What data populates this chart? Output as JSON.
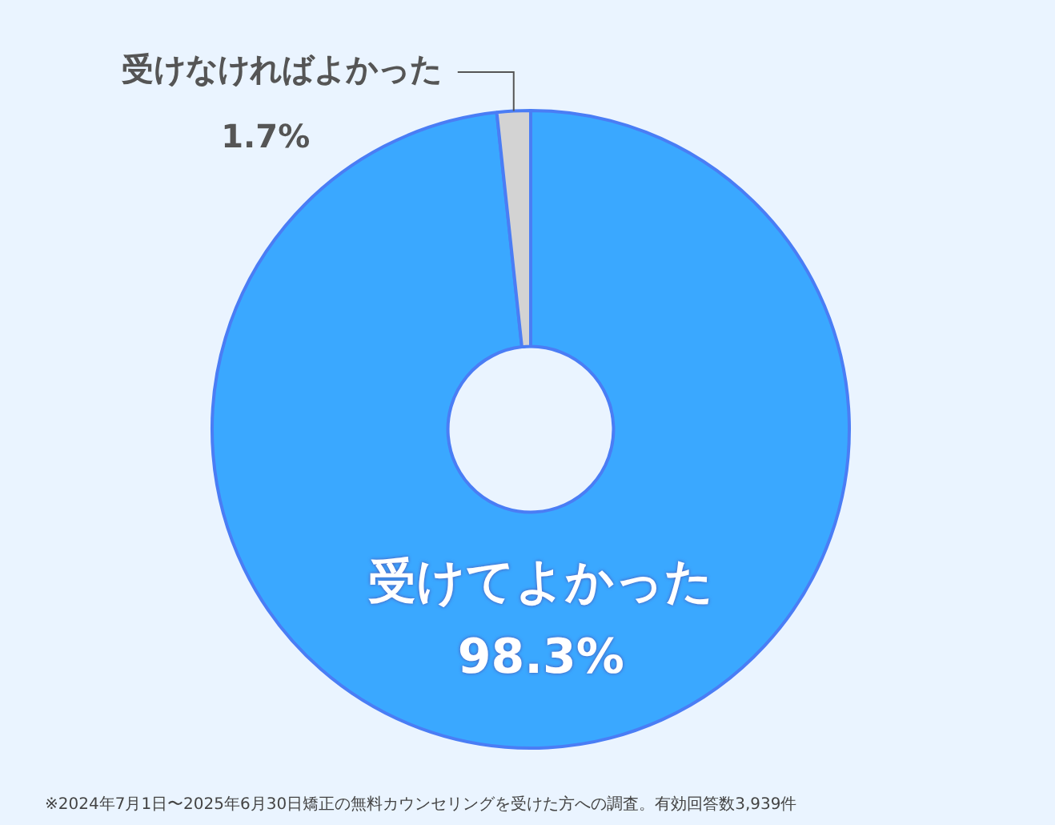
{
  "chart_data": {
    "type": "donut",
    "categories": [
      "受けてよかった",
      "受けなければよかった"
    ],
    "values": [
      98.3,
      1.7
    ],
    "colors": [
      "#3aa8ff",
      "#d3d3d3"
    ],
    "value_labels": [
      "98.3%",
      "1.7%"
    ],
    "annotations": [
      "※2024年7月1日〜2025年6月30日矯正の無料カウンセリングを受けた方への調査。有効回答数3,939件"
    ]
  }
}
